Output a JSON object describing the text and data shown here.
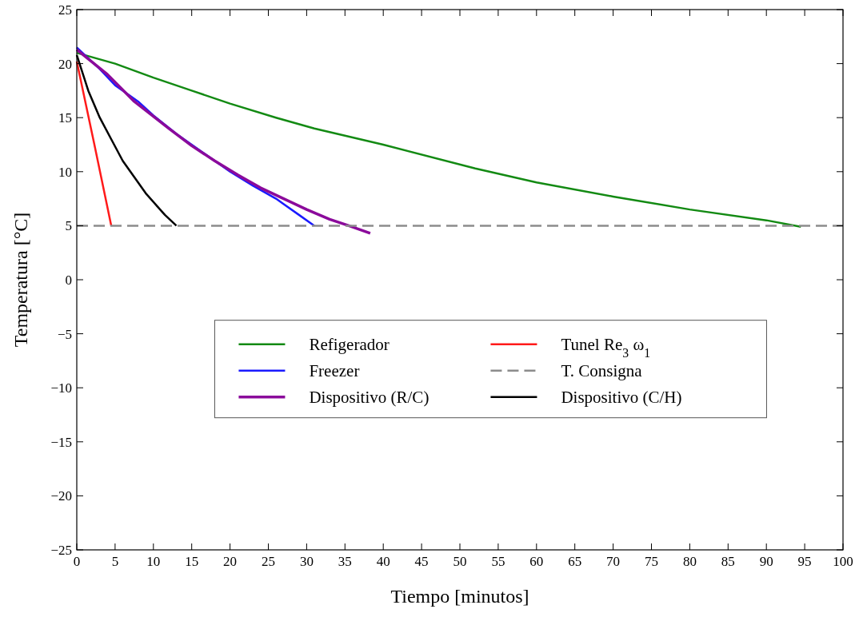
{
  "chart_data": {
    "type": "line",
    "xlabel": "Tiempo [minutos]",
    "ylabel": "Temperatura [°C]",
    "xlim": [
      0,
      100
    ],
    "xticks": [
      0,
      5,
      10,
      15,
      20,
      25,
      30,
      35,
      40,
      45,
      50,
      55,
      60,
      65,
      70,
      75,
      80,
      85,
      90,
      95,
      100
    ],
    "ylim": [
      -25,
      25
    ],
    "yticks": [
      -25,
      -20,
      -15,
      -10,
      -5,
      0,
      5,
      10,
      15,
      20,
      25
    ],
    "grid": false,
    "legend": "center",
    "marker": "none",
    "series": [
      {
        "name": "Refigerador",
        "color": "#138a13",
        "x": [
          0,
          5,
          10,
          15,
          20,
          26,
          31,
          40,
          52,
          60,
          70,
          80,
          90,
          94.5
        ],
        "values": [
          21,
          20,
          18.7,
          17.5,
          16.3,
          15,
          14,
          12.5,
          10.3,
          9,
          7.7,
          6.5,
          5.5,
          4.9
        ]
      },
      {
        "name": "Freezer",
        "color": "#1a1aff",
        "x": [
          0,
          3,
          5,
          8,
          10,
          13,
          16,
          20,
          23,
          26,
          29,
          31
        ],
        "values": [
          21.5,
          19.5,
          18,
          16.5,
          15.2,
          13.5,
          12,
          10,
          8.7,
          7.5,
          6,
          5
        ]
      },
      {
        "name": "Dispositivo (R/C)",
        "color": "#8b0a9b",
        "x": [
          0,
          4,
          7.5,
          12,
          15,
          18,
          21,
          24,
          27,
          30,
          33,
          35.5,
          38.3
        ],
        "values": [
          21.3,
          19,
          16.5,
          14,
          12.4,
          11,
          9.7,
          8.5,
          7.5,
          6.5,
          5.6,
          5,
          4.3
        ]
      },
      {
        "name": "Tunel Re$_{3}$ ω$_{1}$",
        "color": "#ff1a1a",
        "x": [
          0,
          2.3,
          4.5
        ],
        "values": [
          20.2,
          12.5,
          5
        ]
      },
      {
        "name": "T. Consigna",
        "color": "#8c8c8c",
        "line_style": "dashed",
        "x": [
          0,
          100
        ],
        "values": [
          5,
          5
        ]
      },
      {
        "name": "Dispositivo (C/H)",
        "color": "#000000",
        "x": [
          0,
          1.5,
          3,
          4.5,
          6,
          7.5,
          9,
          10.5,
          11.5,
          13
        ],
        "values": [
          20.8,
          17.5,
          15,
          13,
          11,
          9.5,
          8,
          6.8,
          6,
          5
        ]
      }
    ]
  }
}
